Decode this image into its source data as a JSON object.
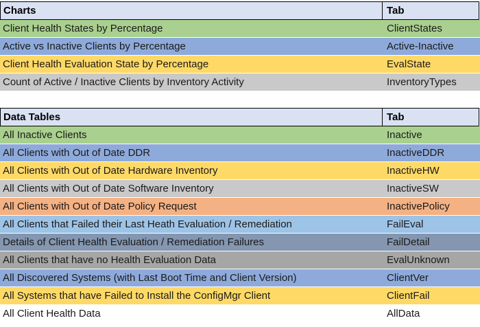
{
  "tables": [
    {
      "header": {
        "title": "Charts",
        "tab": "Tab"
      },
      "rows": [
        {
          "label": "Client Health States by Percentage",
          "tab": "ClientStates",
          "color": "#a9d08e"
        },
        {
          "label": "Active vs Inactive Clients by Percentage",
          "tab": "Active-Inactive",
          "color": "#8eaadb"
        },
        {
          "label": "Client Health Evaluation State by Percentage",
          "tab": "EvalState",
          "color": "#ffd966"
        },
        {
          "label": "Count of Active / Inactive Clients by Inventory Activity",
          "tab": "InventoryTypes",
          "color": "#c9c9c9"
        }
      ]
    },
    {
      "header": {
        "title": "Data Tables",
        "tab": "Tab"
      },
      "rows": [
        {
          "label": "All Inactive Clients",
          "tab": "Inactive",
          "color": "#a9d08e"
        },
        {
          "label": "All Clients with Out of Date DDR",
          "tab": "InactiveDDR",
          "color": "#8eaadb"
        },
        {
          "label": "All Clients with Out of Date Hardware Inventory",
          "tab": "InactiveHW",
          "color": "#ffd966"
        },
        {
          "label": "All Clients with Out of Date Software Inventory",
          "tab": "InactiveSW",
          "color": "#c9c9c9"
        },
        {
          "label": "All Clients with Out of Date Policy Request",
          "tab": "InactivePolicy",
          "color": "#f4b183"
        },
        {
          "label": "All Clients that Failed their Last Heath Evaluation / Remediation",
          "tab": "FailEval",
          "color": "#9dc3e6"
        },
        {
          "label": "Details of Client Health Evaluation / Remediation Failures",
          "tab": "FailDetail",
          "color": "#8496b0"
        },
        {
          "label": "All Clients that have no Health Evaluation Data",
          "tab": "EvalUnknown",
          "color": "#a6a6a6"
        },
        {
          "label": "All Discovered Systems (with Last Boot Time and Client Version)",
          "tab": "ClientVer",
          "color": "#8eaadb"
        },
        {
          "label": "All Systems that have Failed to Install the ConfigMgr Client",
          "tab": "ClientFail",
          "color": "#ffd966"
        },
        {
          "label": "All Client Health Data",
          "tab": "AllData",
          "color": "#ffffff"
        }
      ]
    }
  ],
  "colors": {
    "header_bg": "#d9e1f2",
    "border": "#000000",
    "row_separator": "#ffffff",
    "text": "#1a1a1a",
    "green": "#a9d08e",
    "blue": "#8eaadb",
    "gold": "#ffd966",
    "gray": "#c9c9c9",
    "orange": "#f4b183",
    "light_blue": "#9dc3e6",
    "blue_gray": "#8496b0",
    "dark_gray": "#a6a6a6",
    "white": "#ffffff"
  }
}
